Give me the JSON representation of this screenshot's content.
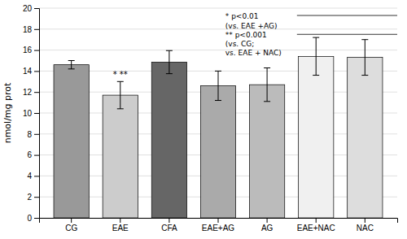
{
  "chart_data": {
    "type": "bar",
    "categories": [
      "CG",
      "EAE",
      "CFA",
      "EAE+AG",
      "AG",
      "EAE+NAC",
      "NAC"
    ],
    "values": [
      14.6,
      11.7,
      14.85,
      12.6,
      12.7,
      15.4,
      15.3
    ],
    "errors": [
      0.4,
      1.3,
      1.1,
      1.4,
      1.6,
      1.8,
      1.7
    ],
    "colors": [
      "#999999",
      "#cccccc",
      "#666666",
      "#aaaaaa",
      "#bbbbbb",
      "#f0f0f0",
      "#dddddd"
    ],
    "y_label": "nmol/mg prot",
    "ylim": [
      0,
      20
    ],
    "yticks": [
      0,
      2,
      4,
      6,
      8,
      10,
      12,
      14,
      16,
      18,
      20
    ],
    "grid": true,
    "annotations": [
      {
        "text": "* **",
        "category": "EAE"
      },
      {
        "text": "* p<0.01\n(vs. EAE +AG)\n** p<0.001\n(vs. CG;\nvs. EAE + NAC)"
      }
    ],
    "reference_lines": [
      19.3,
      17.5
    ]
  }
}
